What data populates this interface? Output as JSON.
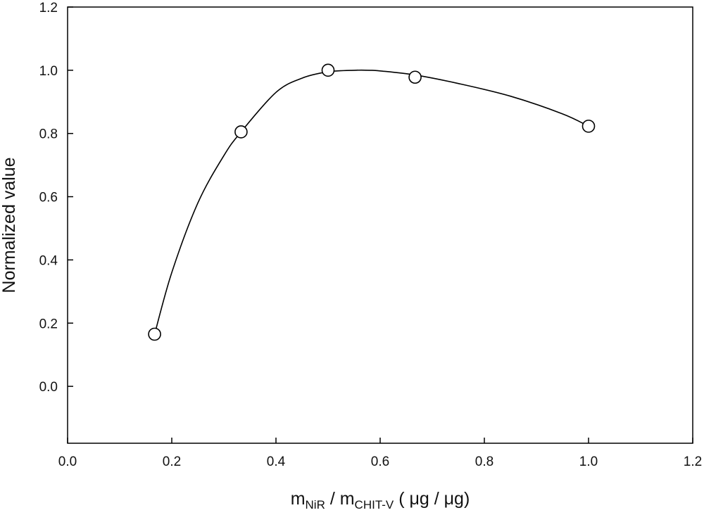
{
  "chart_data": {
    "type": "scatter",
    "title": "",
    "xlabel": {
      "main1": "m",
      "sub1": "NiR",
      "sep": " / ",
      "main2": "m",
      "sub2": "CHIT-V",
      "unit": " ( μg / μg)"
    },
    "ylabel": "Normalized value",
    "xlim": [
      0.0,
      1.2
    ],
    "ylim": [
      -0.18,
      1.2
    ],
    "xticks": [
      "0.0",
      "0.2",
      "0.4",
      "0.6",
      "0.8",
      "1.0",
      "1.2"
    ],
    "yticks": [
      "0.0",
      "0.2",
      "0.4",
      "0.6",
      "0.8",
      "1.0",
      "1.2"
    ],
    "grid": false,
    "series": [
      {
        "marker": "open-circle",
        "x": [
          0.167,
          0.333,
          0.5,
          0.667,
          1.0
        ],
        "y": [
          0.165,
          0.805,
          1.0,
          0.978,
          0.823
        ]
      }
    ],
    "fit_curve": {
      "x": [
        0.167,
        0.2,
        0.25,
        0.3,
        0.333,
        0.4,
        0.45,
        0.5,
        0.55,
        0.58,
        0.6,
        0.667,
        0.75,
        0.85,
        0.95,
        1.0
      ],
      "y": [
        0.165,
        0.36,
        0.58,
        0.73,
        0.805,
        0.93,
        0.975,
        0.995,
        1.0,
        1.0,
        0.998,
        0.985,
        0.958,
        0.918,
        0.862,
        0.823
      ]
    }
  }
}
